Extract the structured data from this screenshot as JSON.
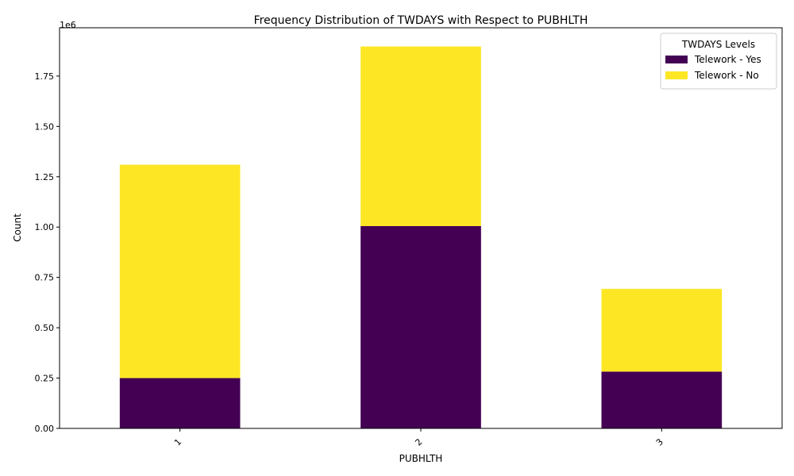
{
  "chart_data": {
    "type": "bar",
    "stacked": true,
    "title": "Frequency Distribution of TWDAYS with Respect to PUBHLTH",
    "xlabel": "PUBHLTH",
    "ylabel": "Count",
    "y_offset_label": "1e6",
    "categories": [
      "1",
      "2",
      "3"
    ],
    "series": [
      {
        "name": "Telework - Yes",
        "color": "#440154",
        "values": [
          250000,
          1005000,
          282000
        ]
      },
      {
        "name": "Telework - No",
        "color": "#fde725",
        "values": [
          1060000,
          892000,
          411000
        ]
      }
    ],
    "ylim": [
      0,
      1990000
    ],
    "yticks": [
      0,
      250000,
      500000,
      750000,
      1000000,
      1250000,
      1500000,
      1750000
    ],
    "ytick_labels": [
      "0.00",
      "0.25",
      "0.50",
      "0.75",
      "1.00",
      "1.25",
      "1.50",
      "1.75"
    ],
    "legend_title": "TWDAYS Levels",
    "legend_position": "top-right",
    "grid": false
  }
}
